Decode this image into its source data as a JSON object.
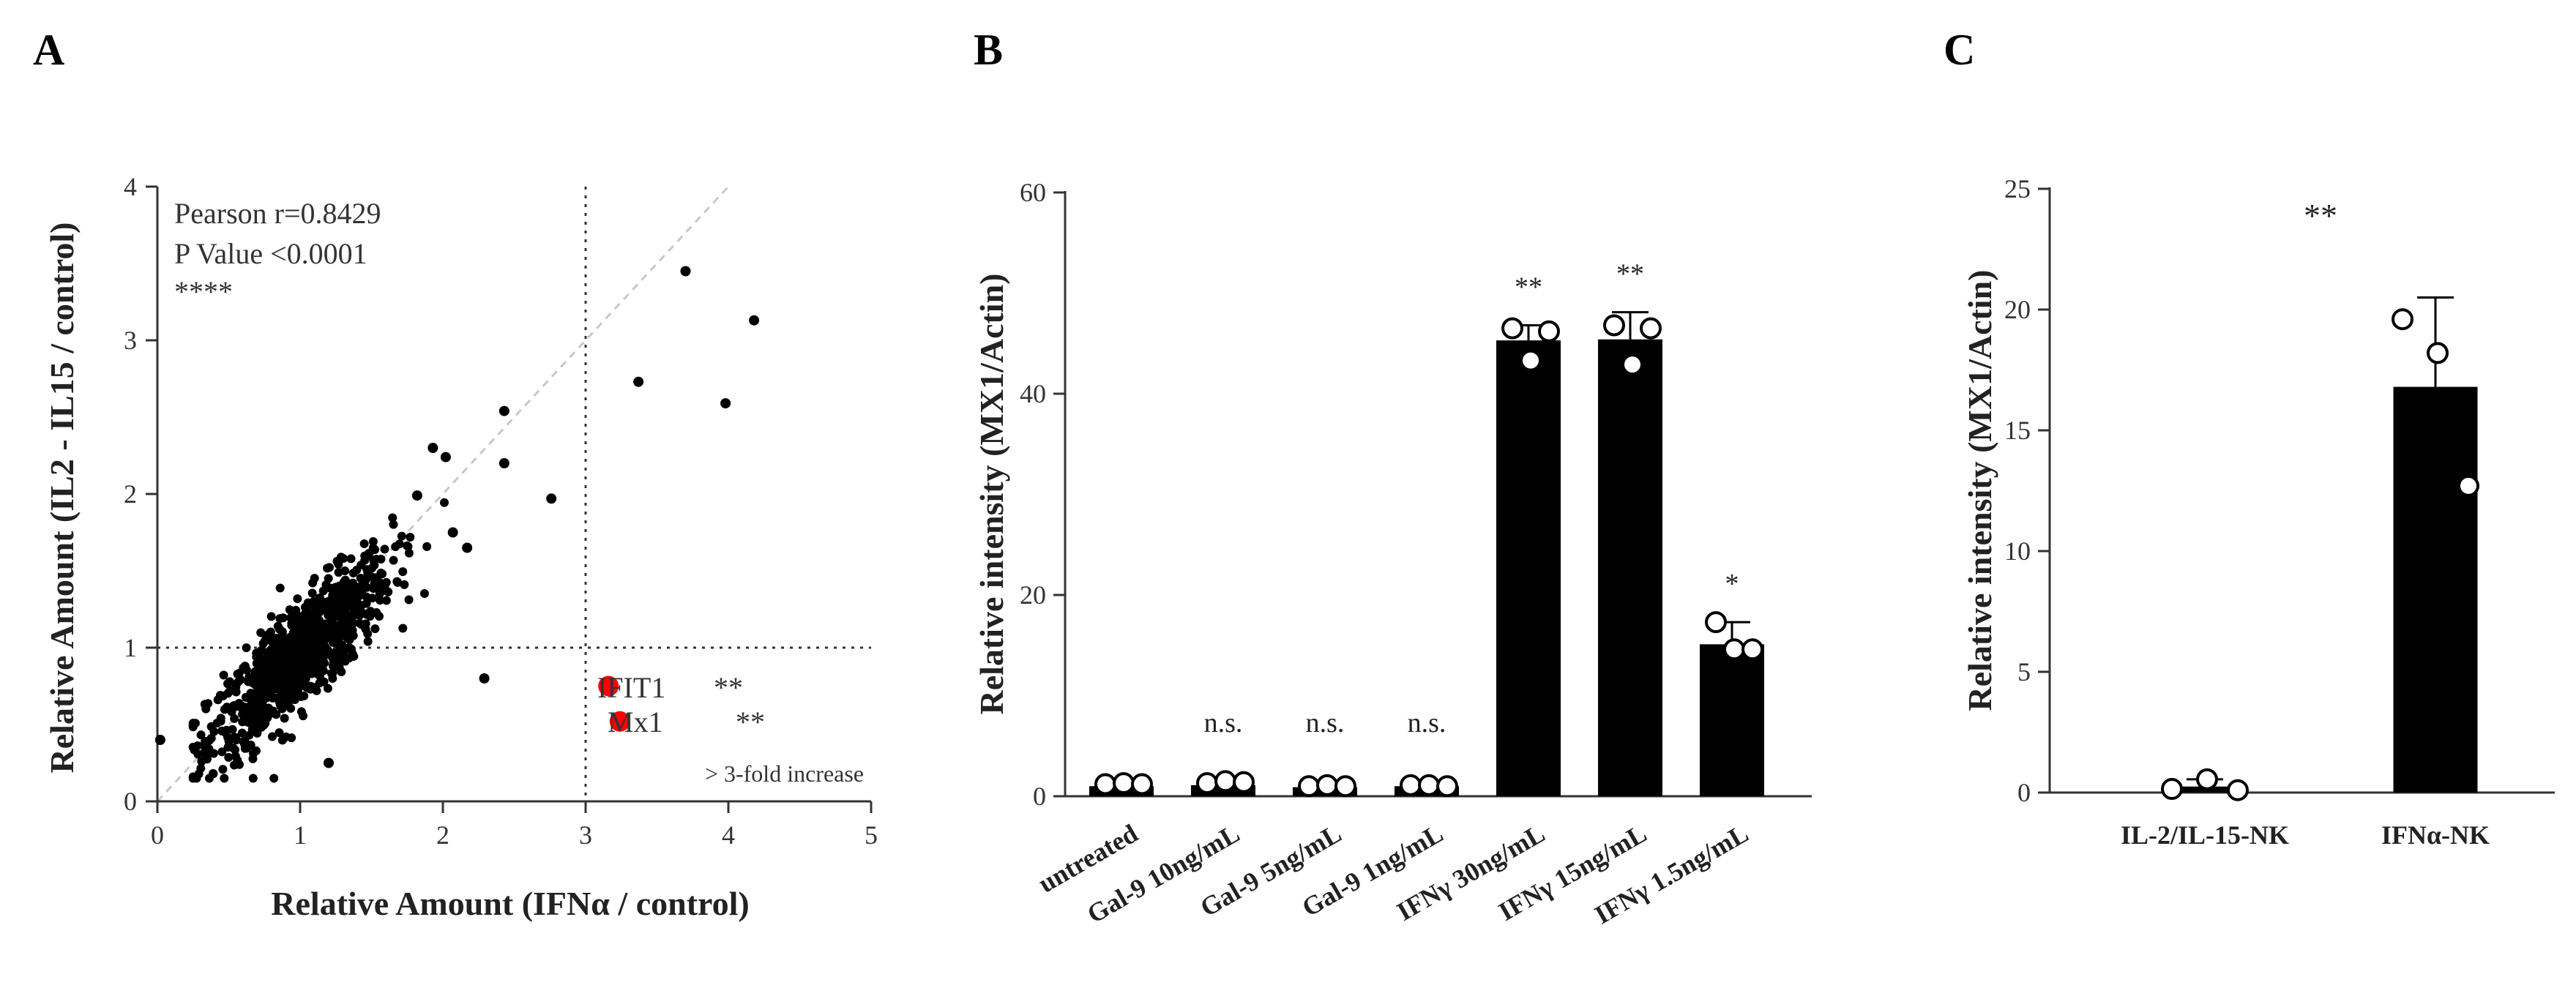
{
  "chart_data": [
    {
      "panel": "A",
      "type": "scatter",
      "xlabel": "Relative Amount (IFNα / control)",
      "ylabel": "Relative Amount (IL2 - IL15 / control)",
      "xlim": [
        0,
        5
      ],
      "ylim": [
        0,
        4
      ],
      "xticks": [
        "0",
        "1",
        "2",
        "3",
        "4",
        "5"
      ],
      "yticks": [
        "0",
        "1",
        "2",
        "3",
        "4"
      ],
      "stats": [
        "Pearson r=0.8429",
        "P Value <0.0001",
        "****"
      ],
      "threshold_label": "> 3-fold increase",
      "cluster": {
        "n": 900,
        "x_center": 1.0,
        "y_center": 0.95,
        "x_sd": 0.32,
        "slope": 0.85,
        "y_sd": 0.17
      },
      "points": [
        {
          "x": 3.7,
          "y": 3.45
        },
        {
          "x": 4.18,
          "y": 3.13
        },
        {
          "x": 3.37,
          "y": 2.73
        },
        {
          "x": 3.98,
          "y": 2.59
        },
        {
          "x": 2.43,
          "y": 2.54
        },
        {
          "x": 2.76,
          "y": 1.97
        },
        {
          "x": 2.43,
          "y": 2.2
        },
        {
          "x": 2.29,
          "y": 0.8
        },
        {
          "x": 0.02,
          "y": 0.4
        },
        {
          "x": 1.93,
          "y": 2.3
        },
        {
          "x": 2.02,
          "y": 2.24
        },
        {
          "x": 2.17,
          "y": 1.65
        },
        {
          "x": 2.07,
          "y": 1.75
        },
        {
          "x": 1.2,
          "y": 0.25
        },
        {
          "x": 1.82,
          "y": 1.99
        }
      ],
      "highlighted": [
        {
          "label": "IFIT1",
          "sig": "**",
          "x": 3.16,
          "y": 0.75
        },
        {
          "label": "Mx1",
          "sig": "**",
          "x": 3.24,
          "y": 0.52
        }
      ]
    },
    {
      "panel": "B",
      "type": "bar",
      "ylabel": "Relative intensity (MX1/Actin)",
      "ylim": [
        0,
        60
      ],
      "yticks": [
        "0",
        "20",
        "40",
        "60"
      ],
      "categories": [
        "untreated",
        "Gal-9 10ng/mL",
        "Gal-9 5ng/mL",
        "Gal-9 1ng/mL",
        "IFNγ 30ng/mL",
        "IFNγ 15ng/mL",
        "IFNγ 1.5ng/mL"
      ],
      "values": [
        1,
        1.1,
        0.9,
        1,
        45.3,
        45.4,
        15.1
      ],
      "errors": [
        0,
        0.2,
        0,
        0,
        1.5,
        2.7,
        2.2
      ],
      "points": [
        [
          1.2,
          1.3,
          1.2
        ],
        [
          1.3,
          1.5,
          1.4
        ],
        [
          1.0,
          1.1,
          1.0
        ],
        [
          1.1,
          1.1,
          1.0
        ],
        [
          46.5,
          43.3,
          46.2
        ],
        [
          46.8,
          42.9,
          46.5
        ],
        [
          17.3,
          14.6,
          14.6
        ]
      ],
      "significance": [
        "",
        "n.s.",
        "n.s.",
        "n.s.",
        "**",
        "**",
        "*"
      ]
    },
    {
      "panel": "C",
      "type": "bar",
      "ylabel": "Relative intensity (MX1/Actin)",
      "ylim": [
        0,
        25
      ],
      "yticks": [
        "0",
        "5",
        "10",
        "15",
        "20",
        "25"
      ],
      "categories": [
        "IL-2/IL-15-NK",
        "IFNα-NK"
      ],
      "values": [
        0.25,
        16.8
      ],
      "errors": [
        0.3,
        3.7
      ],
      "points": [
        [
          0.15,
          0.55,
          0.1
        ],
        [
          19.6,
          18.2,
          12.7
        ]
      ],
      "significance": "**"
    }
  ]
}
